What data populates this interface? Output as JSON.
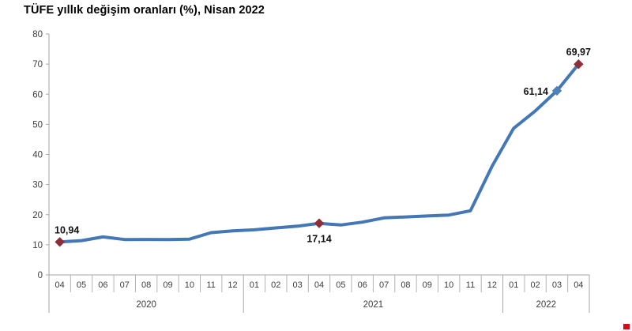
{
  "chart_data": {
    "type": "line",
    "title": "TÜFE yıllık değişim oranları (%), Nisan 2022",
    "months": [
      "04",
      "05",
      "06",
      "07",
      "08",
      "09",
      "10",
      "11",
      "12",
      "01",
      "02",
      "03",
      "04",
      "05",
      "06",
      "07",
      "08",
      "09",
      "10",
      "11",
      "12",
      "01",
      "02",
      "03",
      "04"
    ],
    "values": [
      10.94,
      11.39,
      12.62,
      11.76,
      11.77,
      11.75,
      11.89,
      14.03,
      14.6,
      14.97,
      15.61,
      16.19,
      17.14,
      16.59,
      17.53,
      18.95,
      19.25,
      19.58,
      19.89,
      21.31,
      36.08,
      48.69,
      54.44,
      61.14,
      69.97
    ],
    "year_groups": [
      {
        "label": "2020",
        "months": 9
      },
      {
        "label": "2021",
        "months": 12
      },
      {
        "label": "2022",
        "months": 4
      }
    ],
    "labeled_points": [
      {
        "index": 0,
        "label": "10,94",
        "position": "above",
        "marker_color": "#8e2f38"
      },
      {
        "index": 12,
        "label": "17,14",
        "position": "below",
        "marker_color": "#8e2f38"
      },
      {
        "index": 23,
        "label": "61,14",
        "position": "left",
        "marker_color": "#4f81bd"
      },
      {
        "index": 24,
        "label": "69,97",
        "position": "above",
        "marker_color": "#8e2f38"
      }
    ],
    "ylim": [
      0,
      80
    ],
    "ytick_step": 10,
    "grid": false,
    "legend": "none",
    "colors": {
      "line": "#4377b6",
      "axis": "#a6a6a6",
      "divider": "#b3b3b3",
      "tick_text": "#3d3d3d",
      "data_label_text": "#111111"
    }
  },
  "decorations": {
    "corner_square_color": "#d40d12"
  }
}
